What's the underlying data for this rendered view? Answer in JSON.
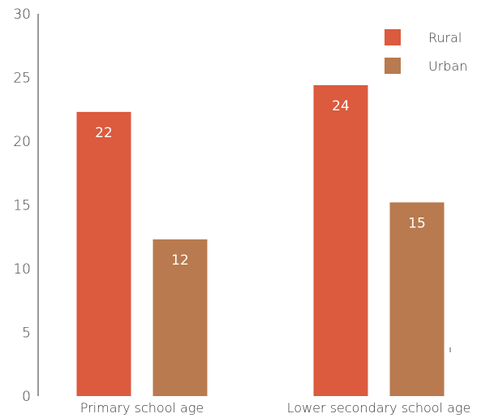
{
  "chart_data": {
    "type": "bar",
    "title": "",
    "xlabel": "",
    "ylabel": "",
    "categories": [
      "Primary school age",
      "Lower secondary school age"
    ],
    "series": [
      {
        "name": "Rural",
        "values": [
          22.3,
          24.4
        ],
        "labels": [
          "22",
          "24"
        ],
        "color": "#dc5a3e"
      },
      {
        "name": "Urban",
        "values": [
          12.3,
          15.2
        ],
        "labels": [
          "12",
          "15"
        ],
        "color": "#b87a4e"
      }
    ],
    "ylim": [
      0,
      30
    ],
    "yticks": [
      0,
      5,
      10,
      15,
      20,
      25,
      30
    ],
    "grid": false,
    "legend": "top-right"
  }
}
